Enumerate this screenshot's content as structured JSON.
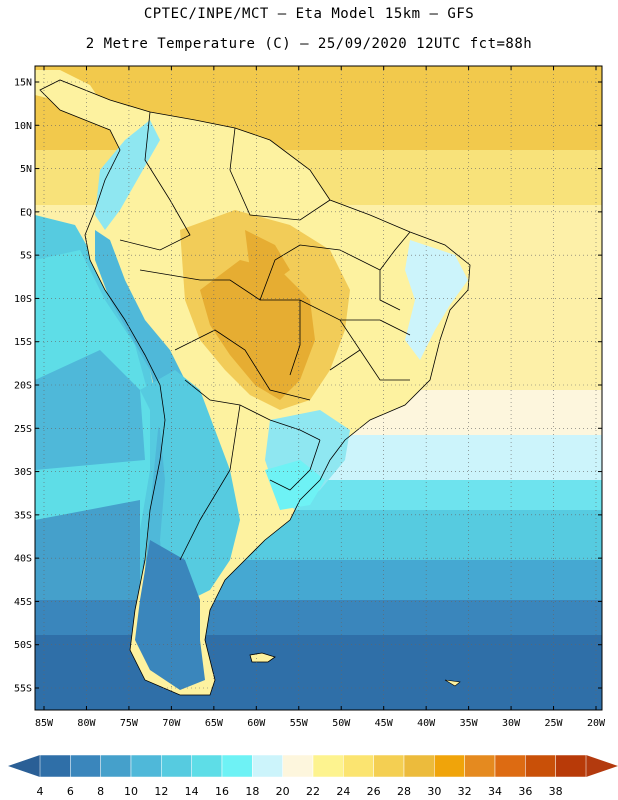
{
  "header": {
    "line1": "CPTEC/INPE/MCT –  Eta Model 15km – GFS",
    "line2": "2 Metre Temperature (C) – 25/09/2020 12UTC fct=88h"
  },
  "map": {
    "projection": "lat-lon",
    "lon_range": [
      -85,
      -20
    ],
    "lat_range": [
      -58,
      17
    ],
    "lat_ticks": [
      "15N",
      "10N",
      "5N",
      "EQ",
      "5S",
      "10S",
      "15S",
      "20S",
      "25S",
      "30S",
      "35S",
      "40S",
      "45S",
      "50S",
      "55S"
    ],
    "lat_values": [
      15,
      10,
      5,
      0,
      -5,
      -10,
      -15,
      -20,
      -25,
      -30,
      -35,
      -40,
      -45,
      -50,
      -55
    ],
    "lon_ticks": [
      "85W",
      "80W",
      "75W",
      "70W",
      "65W",
      "60W",
      "55W",
      "50W",
      "45W",
      "40W",
      "35W",
      "30W",
      "25W",
      "20W"
    ],
    "lon_values": [
      -85,
      -80,
      -75,
      -70,
      -65,
      -60,
      -55,
      -50,
      -45,
      -40,
      -35,
      -30,
      -25,
      -20
    ],
    "gridlines": "dotted",
    "background_ocean_warm": "#f5cf52",
    "land_warm": "#fff0a0",
    "land_hot": "#e6ad32"
  },
  "colorbar": {
    "labels": [
      "4",
      "6",
      "8",
      "10",
      "12",
      "14",
      "16",
      "18",
      "20",
      "22",
      "24",
      "26",
      "28",
      "30",
      "32",
      "34",
      "36",
      "38"
    ],
    "colors": [
      "#2f6fa8",
      "#3a86bc",
      "#45a0cb",
      "#4fb8d9",
      "#56cbe0",
      "#5edde7",
      "#6ef2f5",
      "#ccf4fb",
      "#fdf6dd",
      "#fdf38f",
      "#fbe470",
      "#f4cf52",
      "#ecbb3c",
      "#f0a40a",
      "#e58a1f",
      "#dd6b12",
      "#c95008",
      "#b83a08"
    ],
    "left_arrow_color": "#2a5f96",
    "right_arrow_color": "#b33a0e"
  }
}
